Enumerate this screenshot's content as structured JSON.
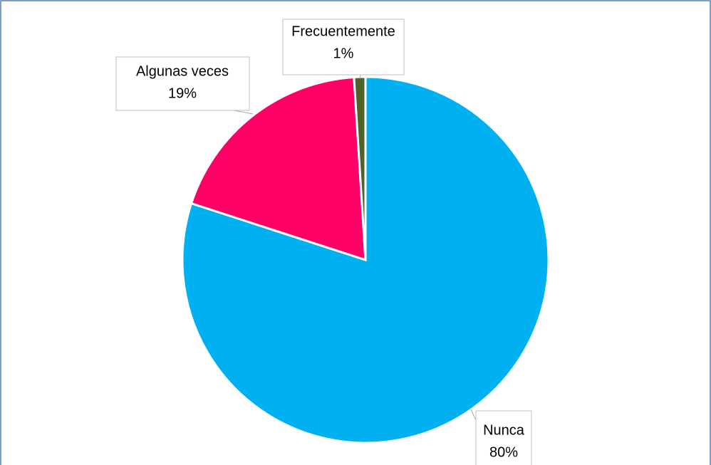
{
  "chart_data": {
    "type": "pie",
    "categories": [
      "Nunca",
      "Algunas veces",
      "Frecuentemente"
    ],
    "values": [
      80,
      19,
      1
    ],
    "value_labels": [
      "80%",
      "19%",
      "1%"
    ],
    "colors": [
      "#00b0f0",
      "#ff0066",
      "#4f6228"
    ]
  }
}
